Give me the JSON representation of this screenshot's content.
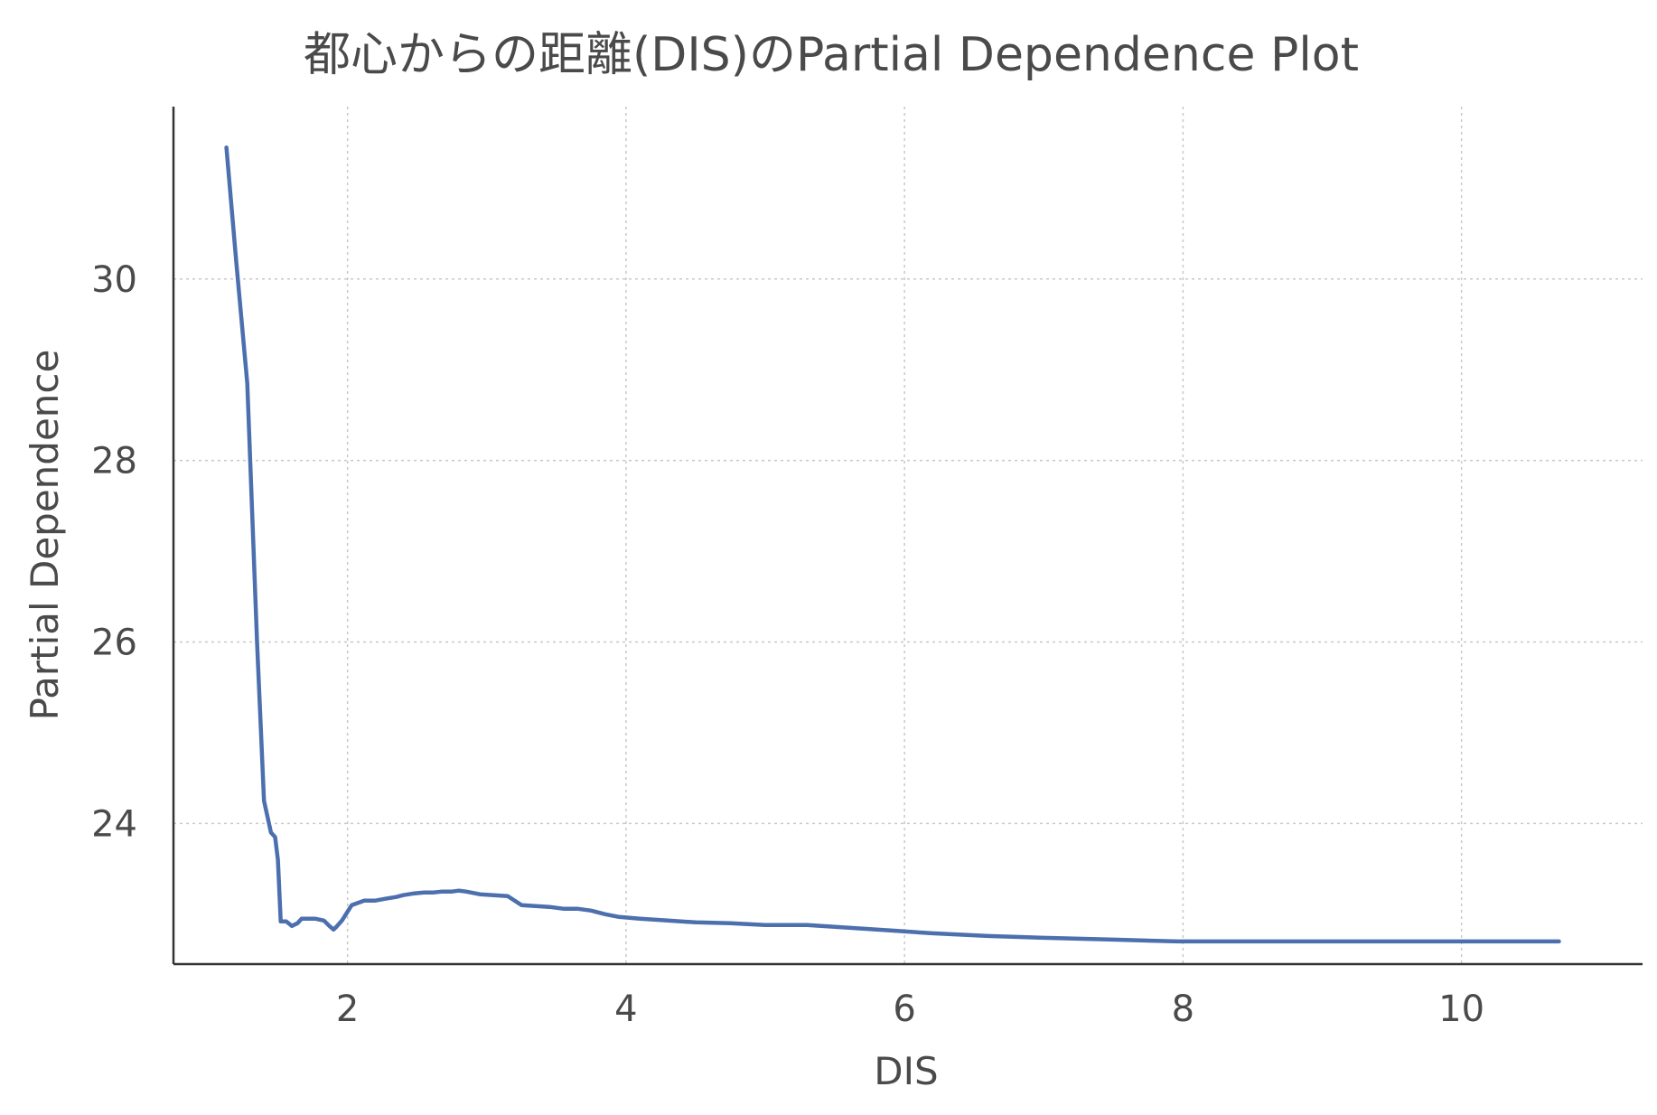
{
  "chart_data": {
    "type": "line",
    "title": "都心からの距離(DIS)のPartial Dependence Plot",
    "xlabel": "DIS",
    "ylabel": "Partial Dependence",
    "xlim": [
      0.75,
      11.3
    ],
    "ylim": [
      22.45,
      31.9
    ],
    "xticks": [
      2,
      4,
      6,
      8,
      10
    ],
    "yticks": [
      24,
      26,
      28,
      30
    ],
    "grid": true,
    "line_color": "#4c6fae",
    "series": [
      {
        "x": [
          1.13,
          1.2,
          1.28,
          1.35,
          1.4,
          1.45,
          1.48,
          1.5,
          1.52,
          1.56,
          1.6,
          1.64,
          1.67,
          1.72,
          1.77,
          1.83,
          1.87,
          1.9,
          1.92,
          1.96,
          2.03,
          2.12,
          2.2,
          2.27,
          2.35,
          2.4,
          2.48,
          2.55,
          2.62,
          2.68,
          2.75,
          2.8,
          2.85,
          2.95,
          3.05,
          3.15,
          3.25,
          3.35,
          3.45,
          3.55,
          3.65,
          3.75,
          3.85,
          3.95,
          4.1,
          4.3,
          4.5,
          4.75,
          5.0,
          5.3,
          5.6,
          5.9,
          6.2,
          6.6,
          7.0,
          7.5,
          7.96,
          8.7,
          9.5,
          10.0,
          10.7
        ],
        "y": [
          31.45,
          30.2,
          28.85,
          26.0,
          24.25,
          23.9,
          23.85,
          23.6,
          22.92,
          22.92,
          22.87,
          22.9,
          22.95,
          22.95,
          22.95,
          22.93,
          22.87,
          22.83,
          22.86,
          22.93,
          23.1,
          23.15,
          23.15,
          23.17,
          23.19,
          23.21,
          23.23,
          23.24,
          23.24,
          23.25,
          23.25,
          23.26,
          23.25,
          23.22,
          23.21,
          23.2,
          23.1,
          23.09,
          23.08,
          23.06,
          23.06,
          23.04,
          23.0,
          22.97,
          22.95,
          22.93,
          22.91,
          22.9,
          22.88,
          22.88,
          22.85,
          22.82,
          22.79,
          22.76,
          22.74,
          22.72,
          22.7,
          22.7,
          22.7,
          22.7,
          22.7
        ]
      }
    ]
  }
}
